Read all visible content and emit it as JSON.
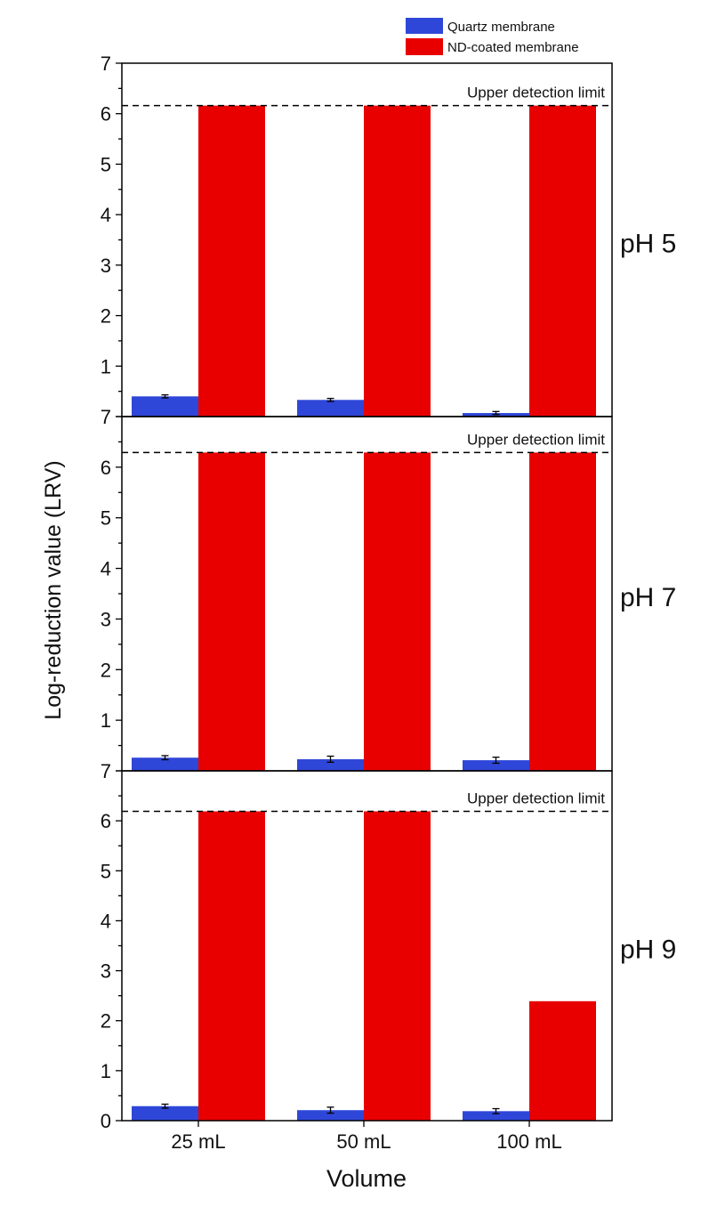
{
  "chart_data": {
    "type": "bar",
    "title": "",
    "xlabel": "Volume",
    "ylabel": "Log-reduction value (LRV)",
    "categories": [
      "25 mL",
      "50 mL",
      "100 mL"
    ],
    "ylim": [
      0,
      7
    ],
    "legend": {
      "placement": "top-right",
      "entries": [
        {
          "name": "Quartz membrane",
          "color": "#2f47d8"
        },
        {
          "name": "ND-coated membrane",
          "color": "#e80000"
        }
      ]
    },
    "panels": [
      {
        "label": "pH 5",
        "detection_limit": 6.16,
        "detection_label": "Upper detection limit",
        "series": [
          {
            "name": "Quartz membrane",
            "values": [
              0.4,
              0.33,
              0.07
            ],
            "errors": [
              0.03,
              0.03,
              0.03
            ]
          },
          {
            "name": "ND-coated membrane",
            "values": [
              6.16,
              6.16,
              6.16
            ]
          }
        ]
      },
      {
        "label": "pH 7",
        "detection_limit": 6.29,
        "detection_label": "Upper detection limit",
        "series": [
          {
            "name": "Quartz membrane",
            "values": [
              0.26,
              0.23,
              0.21
            ],
            "errors": [
              0.04,
              0.06,
              0.06
            ]
          },
          {
            "name": "ND-coated membrane",
            "values": [
              6.29,
              6.29,
              6.29
            ]
          }
        ]
      },
      {
        "label": "pH 9",
        "detection_limit": 6.19,
        "detection_label": "Upper detection limit",
        "series": [
          {
            "name": "Quartz membrane",
            "values": [
              0.29,
              0.21,
              0.19
            ],
            "errors": [
              0.04,
              0.06,
              0.05
            ]
          },
          {
            "name": "ND-coated membrane",
            "values": [
              6.19,
              6.19,
              2.39
            ]
          }
        ]
      }
    ],
    "yticks_top_panels": [
      "1",
      "2",
      "3",
      "4",
      "5",
      "6",
      "7"
    ],
    "yticks_bottom_panel": [
      "0",
      "1",
      "2",
      "3",
      "4",
      "5",
      "6",
      "7"
    ]
  }
}
